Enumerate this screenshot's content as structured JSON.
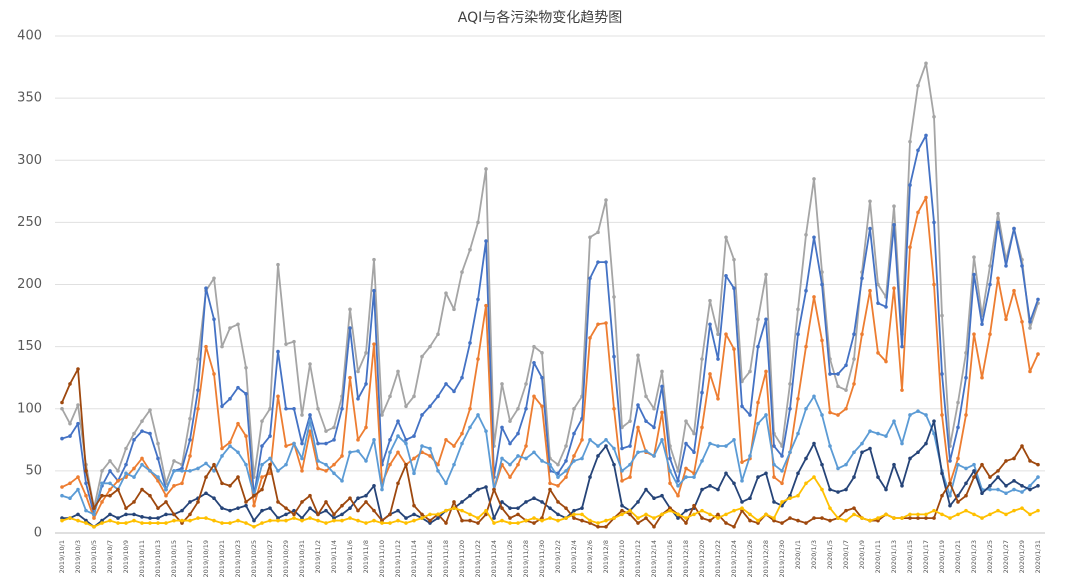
{
  "chart_data": {
    "type": "line",
    "title": "AQI与各污染物变化趋势图",
    "categories": [
      "2019/10/1",
      null,
      "2019/10/3",
      null,
      "2019/10/5",
      null,
      "2019/10/7",
      null,
      "2019/10/9",
      null,
      "2019/10/11",
      null,
      "2019/10/13",
      null,
      "2019/10/15",
      null,
      "2019/10/17",
      null,
      "2019/10/19",
      null,
      "2019/10/21",
      null,
      "2019/10/23",
      null,
      "2019/10/25",
      null,
      "2019/10/27",
      null,
      "2019/10/29",
      null,
      "2019/10/31",
      null,
      "2019/11/2",
      null,
      "2019/11/4",
      null,
      "2019/11/6",
      null,
      "2019/11/8",
      null,
      "2019/11/10",
      null,
      "2019/11/12",
      null,
      "2019/11/14",
      null,
      "2019/11/16",
      null,
      "2019/11/18",
      null,
      "2019/11/20",
      null,
      "2019/11/22",
      null,
      "2019/11/24",
      null,
      "2019/11/26",
      null,
      "2019/11/28",
      null,
      "2019/11/30",
      null,
      "2019/12/2",
      null,
      "2019/12/4",
      null,
      "2019/12/6",
      null,
      "2019/12/8",
      null,
      "2019/12/10",
      null,
      "2019/12/12",
      null,
      "2019/12/14",
      null,
      "2019/12/16",
      null,
      "2019/12/18",
      null,
      "2019/12/20",
      null,
      "2019/12/22",
      null,
      "2019/12/24",
      null,
      "2019/12/26",
      null,
      "2019/12/28",
      null,
      "2019/12/30",
      null,
      "2020/1/1",
      null,
      "2020/1/3",
      null,
      "2020/1/5",
      null,
      "2020/1/7",
      null,
      "2020/1/9",
      null,
      "2020/1/11",
      null,
      "2020/1/13",
      null,
      "2020/1/15",
      null,
      "2020/1/17",
      null,
      "2020/1/19",
      null,
      "2020/1/21",
      null,
      "2020/1/23",
      null,
      "2020/1/25",
      null,
      "2020/1/27",
      null,
      "2020/1/29",
      null,
      "2020/1/31"
    ],
    "series": [
      {
        "color": "#a5a5a5",
        "values": [
          100,
          88,
          103,
          55,
          20,
          50,
          58,
          50,
          68,
          80,
          90,
          99,
          72,
          40,
          58,
          55,
          92,
          140,
          195,
          205,
          150,
          165,
          168,
          133,
          45,
          90,
          100,
          216,
          152,
          154,
          95,
          136,
          100,
          82,
          85,
          110,
          180,
          130,
          145,
          220,
          95,
          110,
          130,
          102,
          110,
          142,
          150,
          160,
          193,
          180,
          210,
          228,
          250,
          293,
          70,
          120,
          90,
          100,
          120,
          150,
          145,
          60,
          55,
          70,
          100,
          110,
          238,
          242,
          268,
          190,
          85,
          90,
          143,
          110,
          100,
          130,
          70,
          50,
          90,
          80,
          140,
          187,
          160,
          238,
          220,
          122,
          130,
          172,
          208,
          80,
          70,
          120,
          180,
          240,
          285,
          210,
          140,
          118,
          115,
          140,
          210,
          267,
          200,
          190,
          263,
          160,
          315,
          360,
          378,
          335,
          175,
          70,
          105,
          145,
          222,
          175,
          215,
          257,
          220,
          245,
          220,
          165,
          185
        ]
      },
      {
        "color": "#4472c4",
        "values": [
          76,
          78,
          88,
          40,
          15,
          38,
          50,
          42,
          55,
          75,
          82,
          80,
          60,
          35,
          50,
          52,
          75,
          115,
          197,
          172,
          102,
          108,
          117,
          112,
          30,
          70,
          78,
          146,
          100,
          100,
          72,
          95,
          72,
          72,
          75,
          100,
          165,
          108,
          120,
          195,
          55,
          75,
          90,
          75,
          78,
          95,
          102,
          110,
          120,
          114,
          125,
          153,
          188,
          235,
          45,
          85,
          72,
          80,
          100,
          137,
          125,
          50,
          48,
          58,
          80,
          92,
          205,
          218,
          218,
          142,
          68,
          70,
          103,
          90,
          85,
          118,
          60,
          42,
          72,
          65,
          113,
          168,
          140,
          207,
          197,
          102,
          95,
          150,
          172,
          70,
          62,
          100,
          160,
          195,
          238,
          200,
          128,
          128,
          135,
          160,
          205,
          245,
          185,
          182,
          248,
          150,
          280,
          308,
          320,
          250,
          128,
          58,
          85,
          125,
          208,
          168,
          200,
          250,
          215,
          245,
          215,
          170,
          188
        ]
      },
      {
        "color": "#ed7d31",
        "values": [
          37,
          40,
          45,
          30,
          12,
          25,
          35,
          42,
          45,
          52,
          60,
          50,
          42,
          30,
          38,
          40,
          62,
          100,
          150,
          128,
          68,
          73,
          88,
          78,
          22,
          45,
          48,
          110,
          70,
          72,
          50,
          82,
          52,
          50,
          55,
          62,
          125,
          75,
          85,
          152,
          40,
          55,
          65,
          55,
          60,
          65,
          62,
          55,
          75,
          70,
          80,
          100,
          140,
          183,
          35,
          55,
          45,
          55,
          70,
          110,
          102,
          40,
          38,
          45,
          62,
          75,
          157,
          168,
          169,
          100,
          42,
          45,
          85,
          65,
          62,
          97,
          40,
          30,
          52,
          48,
          85,
          128,
          108,
          160,
          148,
          57,
          60,
          105,
          130,
          45,
          40,
          65,
          108,
          150,
          190,
          155,
          97,
          95,
          100,
          120,
          160,
          195,
          145,
          138,
          197,
          115,
          230,
          258,
          270,
          200,
          95,
          40,
          60,
          95,
          160,
          125,
          160,
          205,
          172,
          195,
          170,
          130,
          144
        ]
      },
      {
        "color": "#5b9bd5",
        "values": [
          30,
          28,
          35,
          18,
          15,
          40,
          40,
          35,
          48,
          45,
          55,
          50,
          45,
          35,
          50,
          50,
          50,
          52,
          56,
          50,
          62,
          70,
          65,
          55,
          30,
          55,
          60,
          50,
          55,
          72,
          60,
          90,
          58,
          55,
          48,
          42,
          65,
          66,
          58,
          75,
          35,
          65,
          78,
          72,
          48,
          70,
          68,
          50,
          40,
          55,
          72,
          85,
          95,
          82,
          35,
          60,
          55,
          62,
          60,
          65,
          58,
          55,
          45,
          50,
          58,
          60,
          75,
          70,
          75,
          68,
          50,
          55,
          65,
          66,
          62,
          75,
          50,
          38,
          45,
          45,
          58,
          72,
          70,
          70,
          75,
          42,
          62,
          88,
          95,
          55,
          50,
          65,
          80,
          100,
          110,
          95,
          70,
          52,
          55,
          65,
          72,
          82,
          80,
          78,
          90,
          72,
          95,
          98,
          95,
          80,
          50,
          30,
          55,
          52,
          55,
          35,
          35,
          35,
          32,
          35,
          33,
          38,
          45
        ]
      },
      {
        "color": "#264478",
        "values": [
          12,
          12,
          15,
          10,
          5,
          10,
          15,
          12,
          15,
          15,
          13,
          12,
          12,
          15,
          15,
          18,
          25,
          28,
          32,
          28,
          20,
          18,
          20,
          22,
          10,
          18,
          20,
          12,
          15,
          18,
          12,
          20,
          15,
          18,
          12,
          15,
          20,
          28,
          30,
          38,
          10,
          15,
          18,
          12,
          15,
          12,
          8,
          12,
          18,
          20,
          25,
          30,
          35,
          37,
          12,
          25,
          20,
          20,
          25,
          28,
          25,
          20,
          15,
          12,
          18,
          20,
          45,
          62,
          70,
          55,
          22,
          18,
          25,
          35,
          28,
          30,
          20,
          12,
          18,
          20,
          35,
          38,
          35,
          48,
          40,
          25,
          28,
          45,
          48,
          25,
          22,
          30,
          48,
          60,
          72,
          55,
          35,
          33,
          35,
          45,
          65,
          68,
          45,
          35,
          55,
          38,
          60,
          65,
          72,
          90,
          48,
          22,
          30,
          40,
          50,
          32,
          38,
          45,
          38,
          42,
          38,
          35,
          38
        ]
      },
      {
        "color": "#9e480e",
        "values": [
          105,
          120,
          132,
          50,
          20,
          30,
          30,
          35,
          20,
          25,
          35,
          30,
          20,
          25,
          15,
          8,
          15,
          25,
          45,
          55,
          40,
          38,
          45,
          25,
          30,
          35,
          55,
          25,
          20,
          15,
          25,
          30,
          15,
          25,
          15,
          22,
          28,
          18,
          25,
          18,
          10,
          15,
          40,
          55,
          22,
          15,
          10,
          15,
          8,
          25,
          10,
          10,
          8,
          15,
          35,
          20,
          12,
          15,
          10,
          8,
          12,
          35,
          25,
          20,
          12,
          10,
          8,
          5,
          5,
          12,
          18,
          15,
          8,
          12,
          5,
          15,
          20,
          15,
          8,
          22,
          12,
          10,
          15,
          8,
          5,
          18,
          10,
          8,
          15,
          10,
          8,
          12,
          10,
          8,
          12,
          12,
          10,
          12,
          18,
          20,
          12,
          10,
          10,
          15,
          12,
          12,
          12,
          12,
          12,
          12,
          30,
          40,
          25,
          30,
          45,
          55,
          45,
          50,
          58,
          60,
          70,
          58,
          55
        ]
      },
      {
        "color": "#ffc000",
        "values": [
          10,
          12,
          10,
          8,
          5,
          8,
          10,
          8,
          8,
          10,
          8,
          8,
          8,
          8,
          10,
          10,
          10,
          12,
          12,
          10,
          8,
          8,
          10,
          8,
          5,
          8,
          10,
          10,
          10,
          12,
          10,
          12,
          10,
          8,
          10,
          10,
          12,
          10,
          8,
          10,
          8,
          8,
          10,
          8,
          10,
          12,
          15,
          15,
          18,
          20,
          18,
          15,
          12,
          18,
          8,
          10,
          8,
          8,
          10,
          12,
          10,
          12,
          10,
          12,
          15,
          15,
          10,
          8,
          10,
          12,
          15,
          18,
          12,
          15,
          12,
          15,
          18,
          15,
          12,
          15,
          18,
          15,
          12,
          15,
          18,
          20,
          15,
          10,
          15,
          12,
          25,
          28,
          30,
          40,
          45,
          35,
          20,
          12,
          10,
          15,
          12,
          10,
          12,
          15,
          12,
          12,
          15,
          15,
          15,
          18,
          15,
          12,
          15,
          18,
          15,
          12,
          15,
          18,
          15,
          18,
          20,
          15,
          18
        ]
      }
    ],
    "ylim": [
      0,
      400
    ],
    "yticks": [
      0,
      50,
      100,
      150,
      200,
      250,
      300,
      350,
      400
    ],
    "grid": true
  }
}
